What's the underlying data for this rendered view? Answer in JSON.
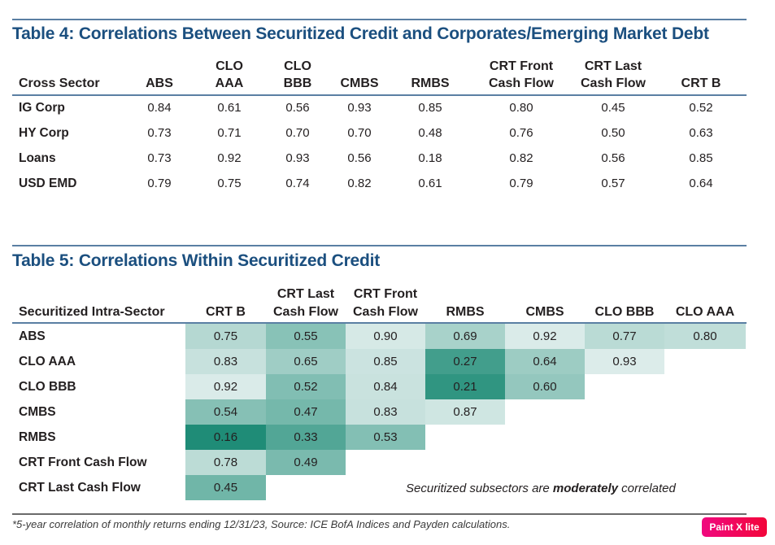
{
  "table4": {
    "title": "Table 4: Correlations Between Securitized Credit and Corporates/Emerging Market Debt",
    "row_header": "Cross Sector",
    "columns": [
      {
        "line1": "",
        "line2": "ABS"
      },
      {
        "line1": "CLO",
        "line2": "AAA"
      },
      {
        "line1": "CLO",
        "line2": "BBB"
      },
      {
        "line1": "",
        "line2": "CMBS"
      },
      {
        "line1": "",
        "line2": "RMBS"
      },
      {
        "line1": "CRT Front",
        "line2": "Cash Flow"
      },
      {
        "line1": "CRT Last",
        "line2": "Cash Flow"
      },
      {
        "line1": "",
        "line2": "CRT B"
      }
    ],
    "rows": [
      {
        "label": "IG Corp",
        "values": [
          "0.84",
          "0.61",
          "0.56",
          "0.93",
          "0.85",
          "0.80",
          "0.45",
          "0.52"
        ]
      },
      {
        "label": "HY Corp",
        "values": [
          "0.73",
          "0.71",
          "0.70",
          "0.70",
          "0.48",
          "0.76",
          "0.50",
          "0.63"
        ]
      },
      {
        "label": "Loans",
        "values": [
          "0.73",
          "0.92",
          "0.93",
          "0.56",
          "0.18",
          "0.82",
          "0.56",
          "0.85"
        ]
      },
      {
        "label": "USD EMD",
        "values": [
          "0.79",
          "0.75",
          "0.74",
          "0.82",
          "0.61",
          "0.79",
          "0.57",
          "0.64"
        ]
      }
    ]
  },
  "table5": {
    "title": "Table 5: Correlations Within Securitized Credit",
    "row_header": "Securitized Intra-Sector",
    "columns": [
      {
        "line1": "",
        "line2": "CRT B"
      },
      {
        "line1": "CRT Last",
        "line2": "Cash Flow"
      },
      {
        "line1": "CRT Front",
        "line2": "Cash Flow"
      },
      {
        "line1": "",
        "line2": "RMBS"
      },
      {
        "line1": "",
        "line2": "CMBS"
      },
      {
        "line1": "",
        "line2": "CLO BBB"
      },
      {
        "line1": "",
        "line2": "CLO AAA"
      }
    ],
    "rows": [
      {
        "label": "ABS",
        "values": [
          "0.75",
          "0.55",
          "0.90",
          "0.69",
          "0.92",
          "0.77",
          "0.80"
        ]
      },
      {
        "label": "CLO AAA",
        "values": [
          "0.83",
          "0.65",
          "0.85",
          "0.27",
          "0.64",
          "0.93"
        ]
      },
      {
        "label": "CLO BBB",
        "values": [
          "0.92",
          "0.52",
          "0.84",
          "0.21",
          "0.60"
        ]
      },
      {
        "label": "CMBS",
        "values": [
          "0.54",
          "0.47",
          "0.83",
          "0.87"
        ]
      },
      {
        "label": "RMBS",
        "values": [
          "0.16",
          "0.33",
          "0.53"
        ]
      },
      {
        "label": "CRT Front Cash Flow",
        "values": [
          "0.78",
          "0.49"
        ]
      },
      {
        "label": "CRT Last Cash Flow",
        "values": [
          "0.45"
        ]
      }
    ],
    "heat_colors": {
      "low": "#1a8a74",
      "high": "#dcecea"
    },
    "note_pre": "Securitized subsectors are ",
    "note_bold": "moderately",
    "note_post": " correlated"
  },
  "footnote": "*5-year correlation of monthly returns ending 12/31/23, Source: ICE BofA Indices and Payden calculations.",
  "watermark": "Paint X lite"
}
